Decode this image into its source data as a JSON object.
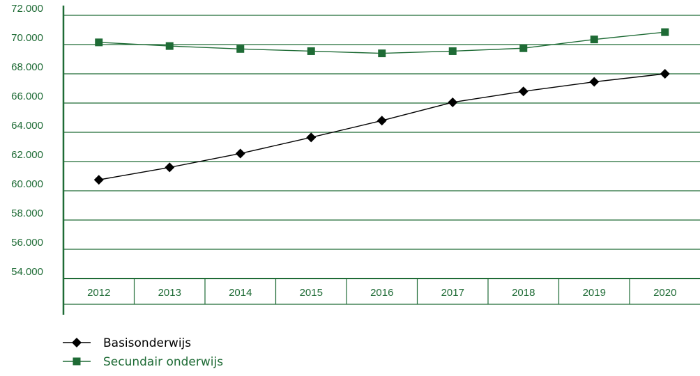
{
  "chart_data": {
    "type": "line",
    "title": "",
    "xlabel": "",
    "ylabel": "",
    "categories": [
      "2012",
      "2013",
      "2014",
      "2015",
      "2016",
      "2017",
      "2018",
      "2019",
      "2020"
    ],
    "ylim": [
      54000,
      72000
    ],
    "y_ticks": [
      "54.000",
      "56.000",
      "58.000",
      "60.000",
      "62.000",
      "64.000",
      "66.000",
      "68.000",
      "70.000",
      "72.000"
    ],
    "y_tick_values": [
      54000,
      56000,
      58000,
      60000,
      62000,
      64000,
      66000,
      68000,
      70000,
      72000
    ],
    "grid": true,
    "legend_position": "bottom-left",
    "series": [
      {
        "name": "Basisonderwijs",
        "marker": "diamond",
        "color": "#000000",
        "values": [
          60750,
          61600,
          62550,
          63650,
          64800,
          66050,
          66800,
          67450,
          68000
        ]
      },
      {
        "name": "Secundair onderwijs",
        "marker": "square",
        "color": "#1e6b35",
        "values": [
          70150,
          69900,
          69700,
          69550,
          69400,
          69550,
          69750,
          70350,
          70850
        ]
      }
    ],
    "colors": {
      "axis": "#1e6b35",
      "grid": "#1e6b35",
      "tick_text": "#1e6b35"
    }
  }
}
